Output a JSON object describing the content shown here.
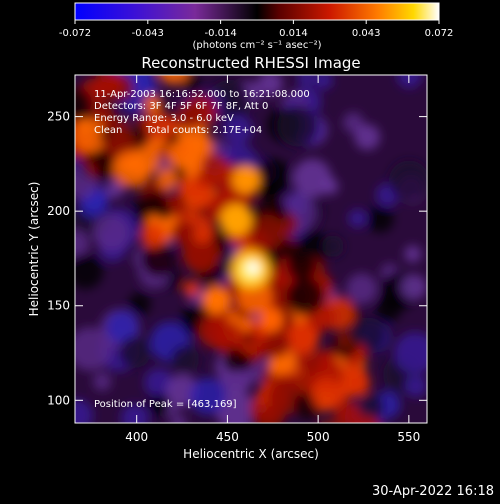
{
  "colorbar": {
    "ticks": [
      "-0.072",
      "-0.043",
      "-0.014",
      "0.014",
      "0.043",
      "0.072"
    ],
    "unit_label": "(photons cm⁻² s⁻¹ asec⁻²)",
    "range": [
      -0.072,
      0.072
    ],
    "stops": [
      {
        "v": 0.0,
        "c": "#0000ff"
      },
      {
        "v": 0.16,
        "c": "#3a10d8"
      },
      {
        "v": 0.33,
        "c": "#7a2a9a"
      },
      {
        "v": 0.5,
        "c": "#000000"
      },
      {
        "v": 0.56,
        "c": "#5a0000"
      },
      {
        "v": 0.7,
        "c": "#cc1800"
      },
      {
        "v": 0.83,
        "c": "#ff7a00"
      },
      {
        "v": 0.93,
        "c": "#ffd800"
      },
      {
        "v": 1.0,
        "c": "#ffffff"
      }
    ]
  },
  "chart_data": {
    "type": "heatmap",
    "title": "Reconstructed RHESSI Image",
    "xlabel": "Heliocentric X (arcsec)",
    "ylabel": "Heliocentric Y (arcsec)",
    "x_ticks": [
      400,
      450,
      500,
      550
    ],
    "y_ticks": [
      100,
      150,
      200,
      250
    ],
    "xlim": [
      366,
      560
    ],
    "ylim": [
      88,
      272
    ],
    "peak": [
      463,
      169
    ],
    "annotations": {
      "time_range": "11-Apr-2003 16:16:52.000 to 16:21:08.000",
      "detectors": "Detectors: 3F 4F 5F 6F 7F 8F, Att 0",
      "energy": "Energy Range: 3.0 - 6.0 keV",
      "clean": "Clean",
      "total_counts": "Total counts: 2.17E+04",
      "peak_text": "Position of Peak = [463,169]"
    }
  },
  "footer": {
    "timestamp": "30-Apr-2022 16:18"
  }
}
